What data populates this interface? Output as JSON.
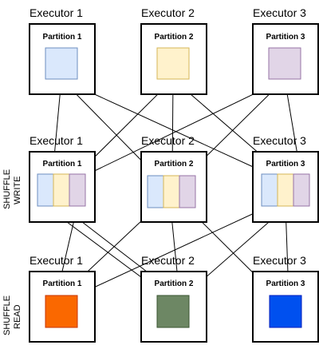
{
  "stages": [
    {
      "side_label": [],
      "executors": [
        {
          "title": "Executor  1",
          "partition": "Partition 1"
        },
        {
          "title": "Executor  2",
          "partition": "Partition 2"
        },
        {
          "title": "Executor  3",
          "partition": "Partition 3"
        }
      ]
    },
    {
      "side_label": [
        "SHUFFLE",
        "WRITE"
      ],
      "executors": [
        {
          "title": "Executor  1",
          "partition": "Partition 1"
        },
        {
          "title": "Executor  2",
          "partition": "Partition 2"
        },
        {
          "title": "Executor  3",
          "partition": "Partition 3"
        }
      ]
    },
    {
      "side_label": [
        "SHUFFLE",
        "READ"
      ],
      "executors": [
        {
          "title": "Executor  1",
          "partition": "Partition 1"
        },
        {
          "title": "Executor  2",
          "partition": "Partition 2"
        },
        {
          "title": "Executor  3",
          "partition": "Partition 3"
        }
      ]
    }
  ],
  "colors": {
    "source_fills": [
      "#dae8fc",
      "#fff2cc",
      "#e1d5e7"
    ],
    "source_strokes": [
      "#6c8ebf",
      "#d6b656",
      "#9673a6"
    ],
    "result_fills": [
      "#fa6800",
      "#6d8764",
      "#0050ef"
    ],
    "result_strokes": [
      "#c73500",
      "#3a5431",
      "#001dbc"
    ],
    "box_border": "#000000",
    "arrow": "#000000"
  }
}
